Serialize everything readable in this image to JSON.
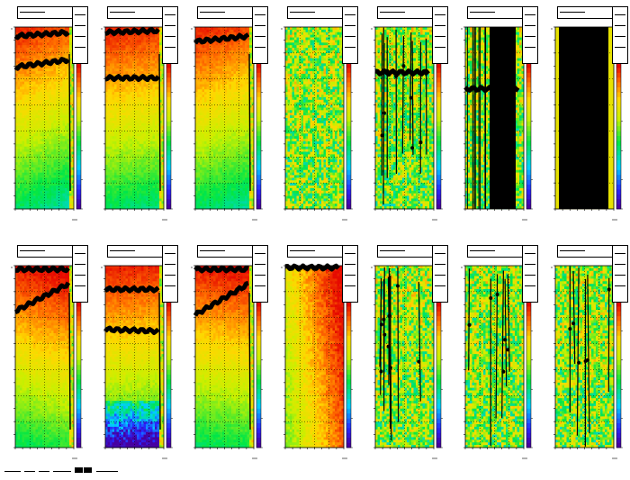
{
  "chart_data": [
    {
      "type": "heatmap",
      "profile": "hot-top",
      "gradient": 0.25,
      "bands": [
        {
          "ys": 0.05,
          "ye": 0.03
        },
        {
          "ys": 0.22,
          "ye": 0.18
        }
      ]
    },
    {
      "type": "heatmap",
      "profile": "hot-top",
      "gradient": 0.1,
      "bands": [
        {
          "ys": 0.03,
          "ye": 0.02
        },
        {
          "ys": 0.28,
          "ye": 0.28
        }
      ]
    },
    {
      "type": "heatmap",
      "profile": "hot-top",
      "gradient": 0.2,
      "bands": [
        {
          "ys": 0.08,
          "ye": 0.05
        }
      ]
    },
    {
      "type": "heatmap",
      "profile": "noisy",
      "gradient": 0.0,
      "bands": []
    },
    {
      "type": "heatmap",
      "profile": "noisy-lines",
      "gradient": 0.0,
      "bands": [
        {
          "ys": 0.25,
          "ye": 0.25
        }
      ]
    },
    {
      "type": "heatmap",
      "profile": "dense-lines",
      "gradient": 0.0,
      "bands": [
        {
          "ys": 0.34,
          "ye": 0.34
        }
      ]
    },
    {
      "type": "heatmap",
      "profile": "black",
      "gradient": 0.0,
      "bands": []
    },
    {
      "type": "heatmap",
      "profile": "hot-top",
      "gradient": -0.2,
      "bands": [
        {
          "ys": 0.02,
          "ye": 0.02
        },
        {
          "ys": 0.25,
          "ye": 0.1
        }
      ]
    },
    {
      "type": "heatmap",
      "profile": "hot-top-blue",
      "gradient": 0.05,
      "bands": [
        {
          "ys": 0.13,
          "ye": 0.13
        },
        {
          "ys": 0.35,
          "ye": 0.36
        }
      ]
    },
    {
      "type": "heatmap",
      "profile": "hot-top",
      "gradient": -0.1,
      "bands": [
        {
          "ys": 0.27,
          "ye": 0.1
        },
        {
          "ys": 0.02,
          "ye": 0.02
        }
      ]
    },
    {
      "type": "heatmap",
      "profile": "warm",
      "gradient": 0.0,
      "bands": [
        {
          "ys": 0.01,
          "ye": 0.01
        }
      ]
    },
    {
      "type": "heatmap",
      "profile": "noisy-lines",
      "gradient": 0.0,
      "bands": []
    },
    {
      "type": "heatmap",
      "profile": "noisy-lines2",
      "gradient": 0.0,
      "bands": []
    },
    {
      "type": "heatmap",
      "profile": "noisy-lines3",
      "gradient": 0.0,
      "bands": []
    }
  ]
}
